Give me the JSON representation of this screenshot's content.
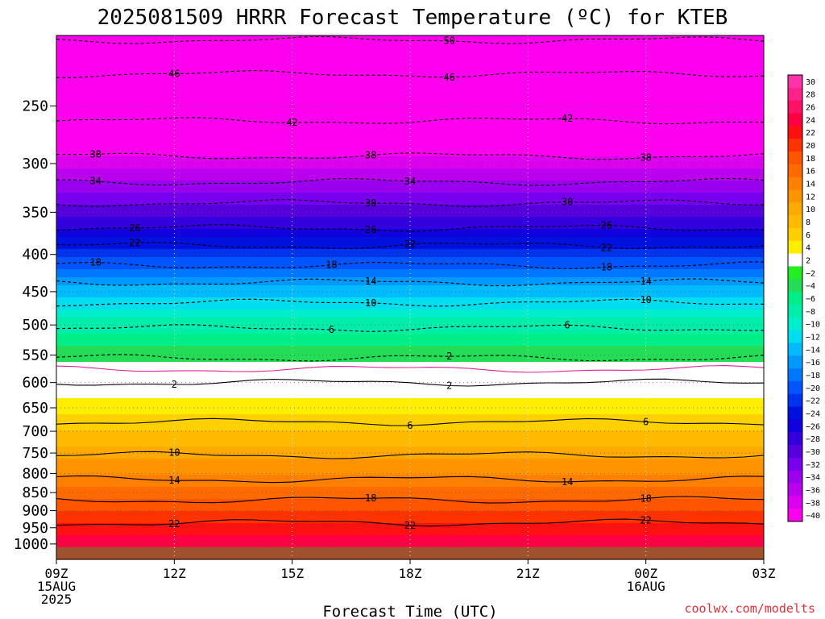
{
  "chart_data": {
    "type": "heatmap",
    "title": "2025081509 HRRR Forecast Temperature (ºC) for KTEB",
    "xlabel": "Forecast Time (UTC)",
    "ylabel": "",
    "credit": "coolwx.com/modelts",
    "y_scale": "log",
    "y_reversed": true,
    "ylim": [
      1050,
      200
    ],
    "y_ticks": [
      250,
      300,
      350,
      400,
      450,
      500,
      550,
      600,
      650,
      700,
      750,
      800,
      850,
      900,
      950,
      1000
    ],
    "x_hours": [
      9,
      27
    ],
    "x_ticks": [
      {
        "hour": 9,
        "lines": [
          "09Z",
          "15AUG",
          "2025"
        ]
      },
      {
        "hour": 12,
        "lines": [
          "12Z"
        ]
      },
      {
        "hour": 15,
        "lines": [
          "15Z"
        ]
      },
      {
        "hour": 18,
        "lines": [
          "18Z"
        ]
      },
      {
        "hour": 21,
        "lines": [
          "21Z"
        ]
      },
      {
        "hour": 24,
        "lines": [
          "00Z",
          "16AUG"
        ]
      },
      {
        "hour": 27,
        "lines": [
          "03Z"
        ]
      }
    ],
    "grid": true,
    "ground_color": "#a0522d",
    "colorbar": {
      "placement": "right",
      "levels": [
        30,
        28,
        26,
        24,
        22,
        20,
        18,
        16,
        14,
        12,
        10,
        8,
        6,
        4,
        2,
        -2,
        -4,
        -6,
        -8,
        -10,
        -12,
        -14,
        -16,
        -18,
        -20,
        -22,
        -24,
        -26,
        -28,
        -30,
        -32,
        -34,
        -36,
        -38,
        -40
      ],
      "colors": [
        "#ff33aa",
        "#ff2288",
        "#ff1166",
        "#ff0044",
        "#ff1111",
        "#ff3300",
        "#ff5500",
        "#ff6a00",
        "#ff8000",
        "#ff9400",
        "#ffaa00",
        "#ffbb00",
        "#ffd000",
        "#ffee00",
        "#ffffff",
        "#22ee22",
        "#22dd55",
        "#00ee88",
        "#00eeaa",
        "#00eecc",
        "#00ddee",
        "#00bbff",
        "#0099ff",
        "#0077ff",
        "#0055ff",
        "#0033ee",
        "#0011dd",
        "#1100dd",
        "#3300dd",
        "#5500dd",
        "#7700ee",
        "#9900ee",
        "#bb00ee",
        "#dd00ee",
        "#ff00ee"
      ]
    },
    "profile": [
      {
        "p": 200,
        "t": -54
      },
      {
        "p": 250,
        "t": -44
      },
      {
        "p": 300,
        "t": -37
      },
      {
        "p": 350,
        "t": -29
      },
      {
        "p": 400,
        "t": -21
      },
      {
        "p": 450,
        "t": -13
      },
      {
        "p": 500,
        "t": -7
      },
      {
        "p": 550,
        "t": -3
      },
      {
        "p": 600,
        "t": 2
      },
      {
        "p": 650,
        "t": 5
      },
      {
        "p": 700,
        "t": 8
      },
      {
        "p": 750,
        "t": 11
      },
      {
        "p": 800,
        "t": 14
      },
      {
        "p": 850,
        "t": 17
      },
      {
        "p": 900,
        "t": 20
      },
      {
        "p": 950,
        "t": 23
      },
      {
        "p": 1000,
        "t": 25
      },
      {
        "p": 1050,
        "t": 26
      }
    ],
    "contours": [
      {
        "value": 50,
        "p": 203,
        "label": "50",
        "style": "dashed",
        "labels_at": [
          19
        ]
      },
      {
        "value": 46,
        "p": 226,
        "label": "46",
        "style": "dashed",
        "labels_at": [
          12,
          19
        ]
      },
      {
        "value": 42,
        "p": 262,
        "label": "42",
        "style": "dashed",
        "labels_at": [
          15,
          22
        ]
      },
      {
        "value": 38,
        "p": 293,
        "label": "38",
        "style": "dashed",
        "labels_at": [
          10,
          17,
          24
        ]
      },
      {
        "value": 34,
        "p": 318,
        "label": "34",
        "style": "dashed",
        "labels_at": [
          10,
          18
        ]
      },
      {
        "value": 30,
        "p": 340,
        "label": "30",
        "style": "dashed",
        "labels_at": [
          17,
          22
        ]
      },
      {
        "value": 26,
        "p": 368,
        "label": "26",
        "style": "dashed",
        "labels_at": [
          11,
          17,
          23
        ]
      },
      {
        "value": 22,
        "p": 389,
        "label": "22",
        "style": "dashed",
        "labels_at": [
          11,
          18,
          23
        ]
      },
      {
        "value": 18,
        "p": 414,
        "label": "18",
        "style": "dashed",
        "labels_at": [
          10,
          16,
          23
        ]
      },
      {
        "value": 14,
        "p": 437,
        "label": "14",
        "style": "dashed",
        "labels_at": [
          17,
          24
        ]
      },
      {
        "value": 10,
        "p": 466,
        "label": "10",
        "style": "dashed",
        "labels_at": [
          17,
          24
        ]
      },
      {
        "value": 6,
        "p": 505,
        "label": "6",
        "style": "dashed",
        "labels_at": [
          16,
          22
        ]
      },
      {
        "value": 2,
        "p": 555,
        "label": "2",
        "style": "dashed",
        "labels_at": [
          19
        ]
      },
      {
        "value": 0,
        "p": 575,
        "label": "",
        "style": "solid-magenta",
        "labels_at": []
      },
      {
        "value": -2,
        "p": 600,
        "label": "2",
        "style": "solid",
        "labels_at": [
          12,
          19
        ]
      },
      {
        "value": -6,
        "p": 680,
        "label": "6",
        "style": "solid",
        "labels_at": [
          18,
          24
        ]
      },
      {
        "value": -10,
        "p": 755,
        "label": "10",
        "style": "solid",
        "labels_at": [
          12
        ]
      },
      {
        "value": -14,
        "p": 815,
        "label": "14",
        "style": "solid",
        "labels_at": [
          12,
          22
        ]
      },
      {
        "value": -18,
        "p": 870,
        "label": "18",
        "style": "solid",
        "labels_at": [
          17,
          24
        ]
      },
      {
        "value": -22,
        "p": 935,
        "label": "22",
        "style": "solid",
        "labels_at": [
          12,
          18,
          24
        ]
      }
    ]
  }
}
